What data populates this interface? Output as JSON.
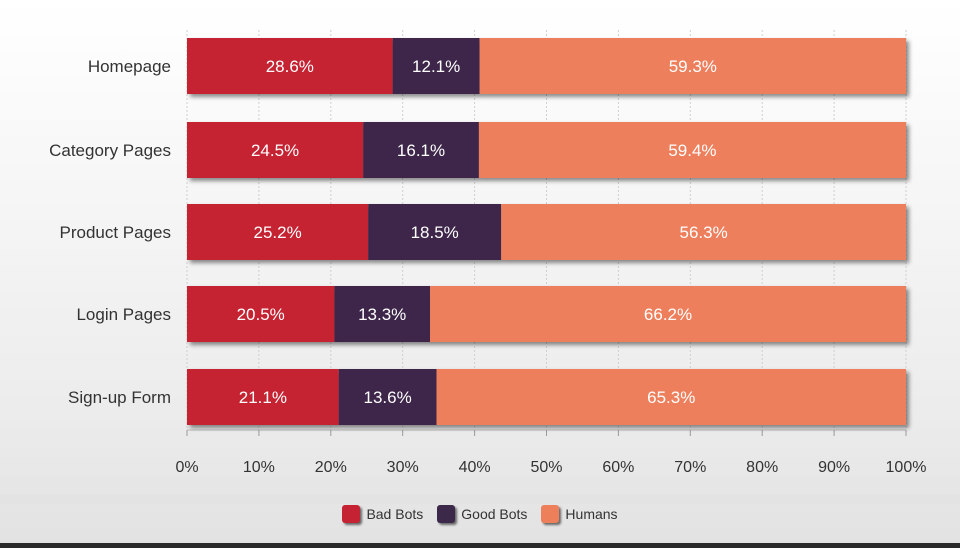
{
  "chart_data": {
    "type": "bar",
    "orientation": "horizontal",
    "stacked": true,
    "categories": [
      "Homepage",
      "Category Pages",
      "Product Pages",
      "Login Pages",
      "Sign-up Form"
    ],
    "series": [
      {
        "name": "Bad Bots",
        "values": [
          28.6,
          24.5,
          25.2,
          20.5,
          21.1
        ],
        "color": "#c52233"
      },
      {
        "name": "Good Bots",
        "values": [
          12.1,
          16.1,
          18.5,
          13.3,
          13.6
        ],
        "color": "#3c2848"
      },
      {
        "name": "Humans",
        "values": [
          59.3,
          59.4,
          56.3,
          66.2,
          65.3
        ],
        "color": "#ee7f5b"
      }
    ],
    "xlim": [
      0,
      100
    ],
    "x_ticks": [
      "0%",
      "10%",
      "20%",
      "30%",
      "40%",
      "50%",
      "60%",
      "70%",
      "80%",
      "90%",
      "100%"
    ],
    "value_suffix": "%",
    "grid": "vertical",
    "legend_position": "bottom-center"
  }
}
